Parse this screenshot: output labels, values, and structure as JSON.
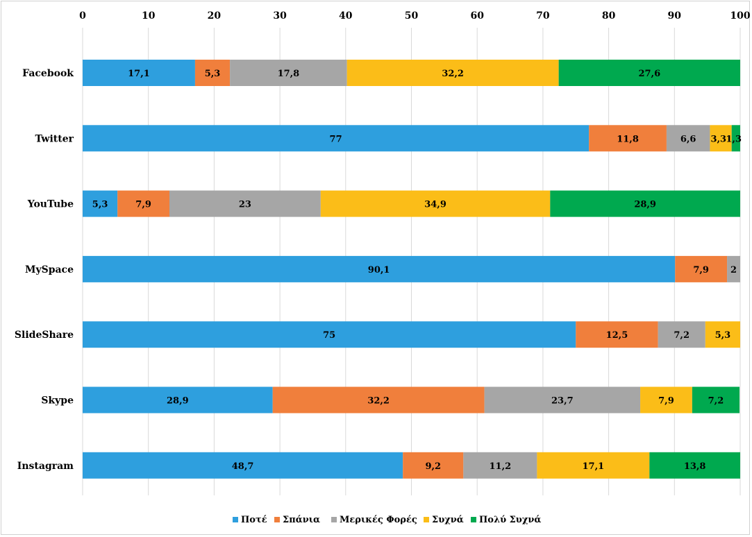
{
  "chart_data": {
    "type": "bar",
    "orientation": "horizontal",
    "stacked": true,
    "categories": [
      "Facebook",
      "Twitter",
      "YouTube",
      "MySpace",
      "SlideShare",
      "Skype",
      "Instagram"
    ],
    "series": [
      {
        "name": "Ποτέ",
        "color": "#2e9fde",
        "values": [
          17.1,
          77,
          5.3,
          90.1,
          75,
          28.9,
          48.7
        ],
        "labels": [
          "17,1",
          "77",
          "5,3",
          "90,1",
          "75",
          "28,9",
          "48,7"
        ]
      },
      {
        "name": "Σπάνια",
        "color": "#f07f3c",
        "values": [
          5.3,
          11.8,
          7.9,
          7.9,
          12.5,
          32.2,
          9.2
        ],
        "labels": [
          "5,3",
          "11,8",
          "7,9",
          "7,9",
          "12,5",
          "32,2",
          "9,2"
        ]
      },
      {
        "name": "Μερικές Φορές",
        "color": "#a6a6a6",
        "values": [
          17.8,
          6.6,
          23,
          2,
          7.2,
          23.7,
          11.2
        ],
        "labels": [
          "17,8",
          "6,6",
          "23",
          "2",
          "7,2",
          "23,7",
          "11,2"
        ]
      },
      {
        "name": "Συχνά",
        "color": "#fbbd18",
        "values": [
          32.2,
          3.3,
          34.9,
          0,
          5.3,
          7.9,
          17.1
        ],
        "labels": [
          "32,2",
          "3,3",
          "34,9",
          "",
          "5,3",
          "7,9",
          "17,1"
        ]
      },
      {
        "name": "Πολύ Συχνά",
        "color": "#00a94f",
        "values": [
          27.6,
          1.3,
          28.9,
          0,
          0,
          7.2,
          13.8
        ],
        "labels": [
          "27,6",
          "1,3",
          "28,9",
          "",
          "",
          "7,2",
          "13,8"
        ]
      }
    ],
    "xticks": [
      "0",
      "10",
      "20",
      "30",
      "40",
      "50",
      "60",
      "70",
      "80",
      "90",
      "100"
    ],
    "xlim": [
      0,
      100
    ],
    "grid": true,
    "xaxis_position": "top",
    "legend_position": "bottom",
    "title": "",
    "xlabel": "",
    "ylabel": ""
  }
}
